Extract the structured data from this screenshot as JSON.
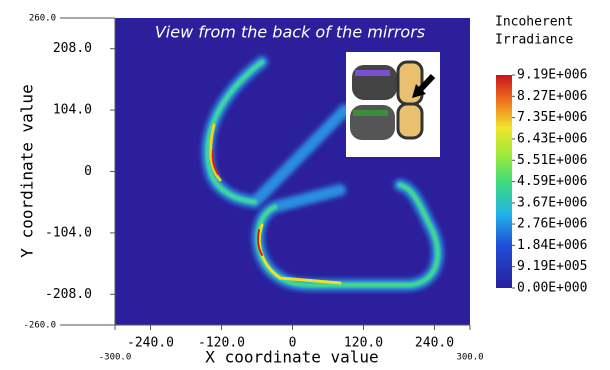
{
  "chart_data": {
    "type": "heatmap",
    "annotation": "View from the back of the mirrors",
    "xlabel": "X coordinate value",
    "ylabel": "Y coordinate value",
    "xlim": [
      -300,
      300
    ],
    "ylim": [
      -260,
      260
    ],
    "xticks": [
      {
        "value": -300,
        "label": "-300.0"
      },
      {
        "value": -240,
        "label": "-240.0"
      },
      {
        "value": -120,
        "label": "-120.0"
      },
      0,
      {
        "value": 120,
        "label": "120.0"
      },
      {
        "value": 240,
        "label": "240.0"
      },
      {
        "value": 300,
        "label": "300.0"
      }
    ],
    "yticks": [
      {
        "value": -260,
        "label": "-260.0"
      },
      {
        "value": -208,
        "label": "-208.0"
      },
      {
        "value": -104,
        "label": "-104.0"
      },
      0,
      {
        "value": 104,
        "label": "104.0"
      },
      {
        "value": 208,
        "label": "208.0"
      },
      {
        "value": 260,
        "label": "260.0"
      }
    ],
    "colorbar": {
      "title": [
        "Incoherent",
        "Irradiance"
      ],
      "lim": [
        0,
        9190000
      ],
      "ticks": [
        {
          "value": 9190000,
          "label": "9.19E+006"
        },
        {
          "value": 8270000,
          "label": "8.27E+006"
        },
        {
          "value": 7350000,
          "label": "7.35E+006"
        },
        {
          "value": 6430000,
          "label": "6.43E+006"
        },
        {
          "value": 5510000,
          "label": "5.51E+006"
        },
        {
          "value": 4590000,
          "label": "4.59E+006"
        },
        {
          "value": 3670000,
          "label": "3.67E+006"
        },
        {
          "value": 2760000,
          "label": "2.76E+006"
        },
        {
          "value": 1840000,
          "label": "1.84E+006"
        },
        {
          "value": 919000,
          "label": "9.19E+005"
        },
        {
          "value": 0,
          "label": "0.00E+000"
        }
      ]
    }
  }
}
